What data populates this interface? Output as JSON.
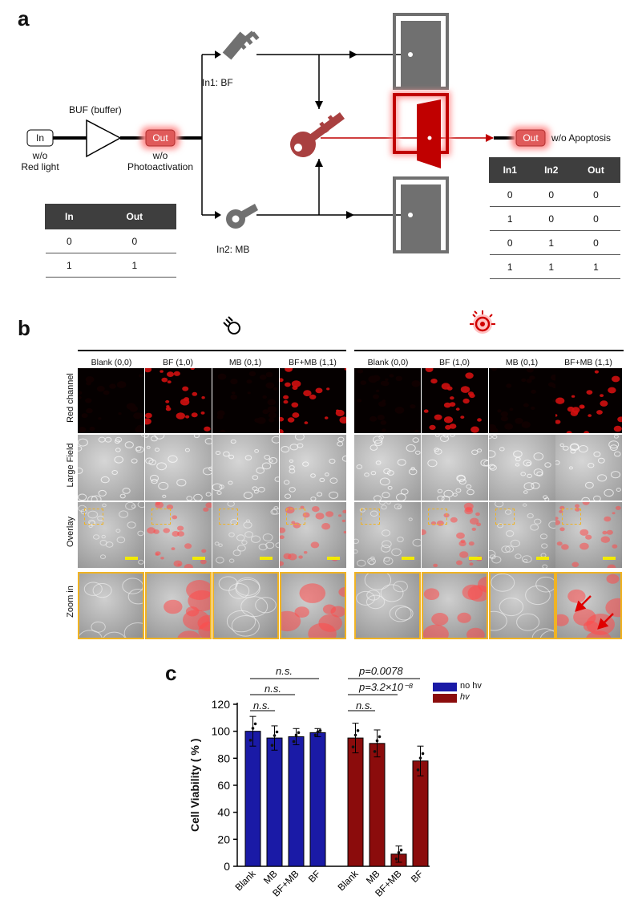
{
  "panel_a": {
    "letter": "a",
    "input_label": "In",
    "input_caption": "w/o\nRed light",
    "buffer_label": "BUF (buffer)",
    "buffer_out_label": "Out",
    "buffer_out_caption": "w/o\nPhotoactivation",
    "in1_label": "In1: BF",
    "in2_label": "In2: MB",
    "final_out_label": "Out",
    "final_out_caption": "w/o Apoptosis",
    "buf_table": {
      "headers": [
        "In",
        "Out"
      ],
      "rows": [
        [
          "0",
          "0"
        ],
        [
          "1",
          "1"
        ]
      ]
    },
    "and_table": {
      "headers": [
        "In1",
        "In2",
        "Out"
      ],
      "rows": [
        [
          "0",
          "0",
          "0"
        ],
        [
          "1",
          "0",
          "0"
        ],
        [
          "0",
          "1",
          "0"
        ],
        [
          "1",
          "1",
          "1"
        ]
      ]
    },
    "colors": {
      "gray": "#707070",
      "red": "#c00000",
      "glow": "#ff7070"
    }
  },
  "panel_b": {
    "letter": "b",
    "condition_icons": [
      "bulb-off-icon",
      "bulb-on-icon"
    ],
    "column_headers": [
      "Blank (0,0)",
      "BF (1,0)",
      "MB (0,1)",
      "BF+MB (1,1)",
      "Blank (0,0)",
      "BF (1,0)",
      "MB (0,1)",
      "BF+MB (1,1)"
    ],
    "row_labels": [
      "Red channel",
      "Large Field",
      "Overlay",
      "Zoom in"
    ],
    "colors": {
      "scalebar": "#f2ea00",
      "zoom_border": "#f0b323",
      "arrow": "#e00000"
    }
  },
  "panel_c": {
    "letter": "c",
    "significance": [
      {
        "text": "n.s."
      },
      {
        "text": "n.s."
      },
      {
        "text": "n.s."
      },
      {
        "text": "p=0.0078"
      },
      {
        "text": "p=3.2×10⁻⁸"
      },
      {
        "text": "n.s."
      }
    ]
  },
  "chart_data": {
    "type": "bar",
    "ylabel": "Cell Viability ( % )",
    "ylim": [
      0,
      120
    ],
    "yticks": [
      0,
      20,
      40,
      60,
      80,
      100,
      120
    ],
    "legend": {
      "placement": "top-right"
    },
    "series": [
      {
        "name": "no hv",
        "color": "#1a1aa6",
        "categories": [
          "Blank",
          "MB",
          "BF+MB",
          "BF"
        ],
        "values": [
          100,
          95,
          96,
          99
        ],
        "errors": [
          11,
          9,
          6,
          3
        ]
      },
      {
        "name": "hv",
        "color": "#8b0c0c",
        "categories": [
          "Blank",
          "MB",
          "BF+MB",
          "BF"
        ],
        "values": [
          95,
          91,
          9,
          78
        ],
        "errors": [
          11,
          10,
          6,
          11
        ]
      }
    ]
  }
}
